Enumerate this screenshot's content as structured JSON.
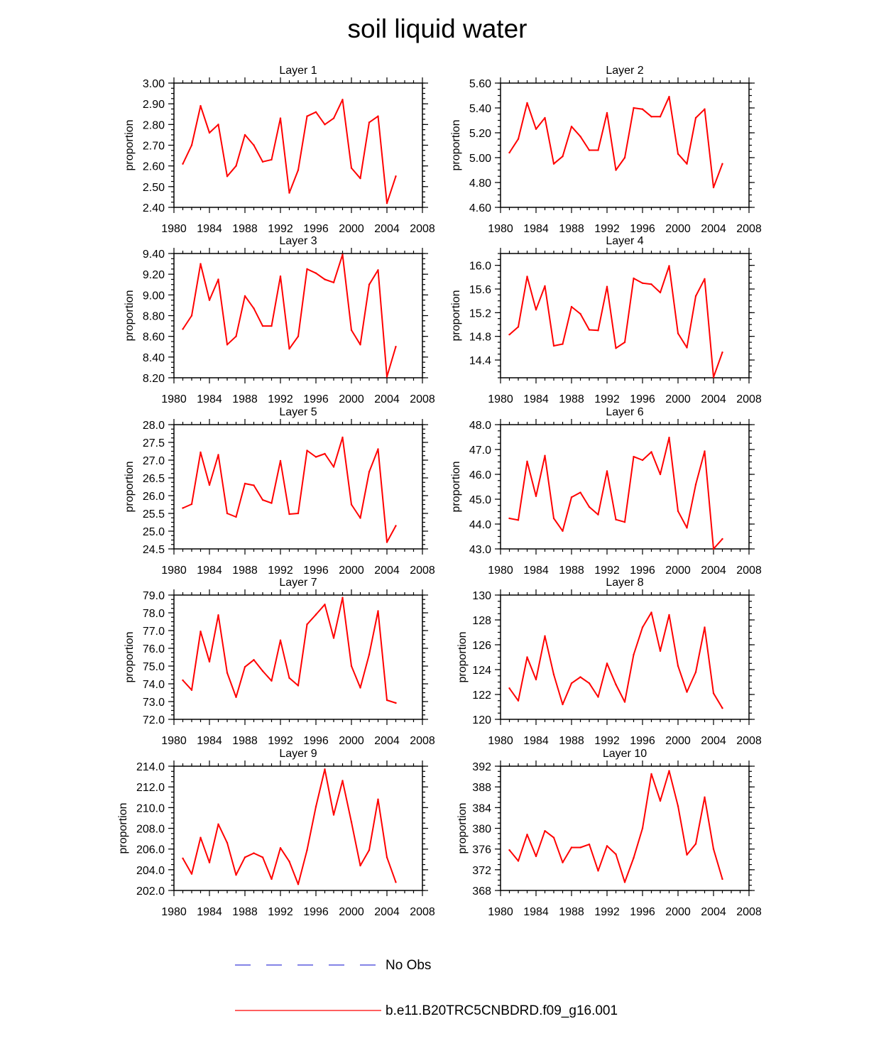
{
  "title": "soil liquid water",
  "legend": {
    "obs_label": "No Obs",
    "obs_color": "#3b3bd6",
    "model_label": "b.e11.B20TRC5CNBDRD.f09_g16.001",
    "model_color": "#ff0000"
  },
  "chart_data": [
    {
      "type": "line",
      "title": "Layer 1",
      "xlabel": "",
      "ylabel": "proportion",
      "xlim": [
        1980,
        2008
      ],
      "ylim": [
        2.4,
        3.0
      ],
      "xticks": [
        "1980",
        "1984",
        "1988",
        "1992",
        "1996",
        "2000",
        "2004",
        "2008"
      ],
      "yticks": [
        "2.40",
        "2.50",
        "2.60",
        "2.70",
        "2.80",
        "2.90",
        "3.00"
      ],
      "x": [
        1981,
        1982,
        1983,
        1984,
        1985,
        1986,
        1987,
        1988,
        1989,
        1990,
        1991,
        1992,
        1993,
        1994,
        1995,
        1996,
        1997,
        1998,
        1999,
        2000,
        2001,
        2002,
        2003,
        2004,
        2005
      ],
      "series": [
        {
          "name": "b.e11.B20TRC5CNBDRD.f09_g16.001",
          "values": [
            2.61,
            2.7,
            2.89,
            2.76,
            2.8,
            2.55,
            2.6,
            2.75,
            2.7,
            2.62,
            2.63,
            2.83,
            2.47,
            2.58,
            2.84,
            2.86,
            2.8,
            2.83,
            2.92,
            2.59,
            2.54,
            2.81,
            2.84,
            2.42,
            2.55
          ]
        }
      ]
    },
    {
      "type": "line",
      "title": "Layer 2",
      "xlabel": "",
      "ylabel": "proportion",
      "xlim": [
        1980,
        2008
      ],
      "ylim": [
        4.6,
        5.6
      ],
      "xticks": [
        "1980",
        "1984",
        "1988",
        "1992",
        "1996",
        "2000",
        "2004",
        "2008"
      ],
      "yticks": [
        "4.60",
        "4.80",
        "5.00",
        "5.20",
        "5.40",
        "5.60"
      ],
      "x": [
        1981,
        1982,
        1983,
        1984,
        1985,
        1986,
        1987,
        1988,
        1989,
        1990,
        1991,
        1992,
        1993,
        1994,
        1995,
        1996,
        1997,
        1998,
        1999,
        2000,
        2001,
        2002,
        2003,
        2004,
        2005
      ],
      "series": [
        {
          "name": "b.e11.B20TRC5CNBDRD.f09_g16.001",
          "values": [
            5.04,
            5.15,
            5.44,
            5.23,
            5.32,
            4.95,
            5.01,
            5.25,
            5.17,
            5.06,
            5.06,
            5.36,
            4.9,
            5.0,
            5.4,
            5.39,
            5.33,
            5.33,
            5.49,
            5.03,
            4.95,
            5.32,
            5.39,
            4.76,
            4.95
          ]
        }
      ]
    },
    {
      "type": "line",
      "title": "Layer 3",
      "xlabel": "",
      "ylabel": "proportion",
      "xlim": [
        1980,
        2008
      ],
      "ylim": [
        8.2,
        9.4
      ],
      "xticks": [
        "1980",
        "1984",
        "1988",
        "1992",
        "1996",
        "2000",
        "2004",
        "2008"
      ],
      "yticks": [
        "8.20",
        "8.40",
        "8.60",
        "8.80",
        "9.00",
        "9.20",
        "9.40"
      ],
      "x": [
        1981,
        1982,
        1983,
        1984,
        1985,
        1986,
        1987,
        1988,
        1989,
        1990,
        1991,
        1992,
        1993,
        1994,
        1995,
        1996,
        1997,
        1998,
        1999,
        2000,
        2001,
        2002,
        2003,
        2004,
        2005
      ],
      "series": [
        {
          "name": "b.e11.B20TRC5CNBDRD.f09_g16.001",
          "values": [
            8.67,
            8.8,
            9.3,
            8.95,
            9.15,
            8.52,
            8.6,
            8.99,
            8.87,
            8.7,
            8.7,
            9.18,
            8.48,
            8.6,
            9.25,
            9.21,
            9.15,
            9.12,
            9.39,
            8.66,
            8.52,
            9.1,
            9.24,
            8.21,
            8.5
          ]
        }
      ]
    },
    {
      "type": "line",
      "title": "Layer 4",
      "xlabel": "",
      "ylabel": "proportion",
      "xlim": [
        1980,
        2008
      ],
      "ylim": [
        14.1,
        16.2
      ],
      "xticks": [
        "1980",
        "1984",
        "1988",
        "1992",
        "1996",
        "2000",
        "2004",
        "2008"
      ],
      "yticks": [
        "14.4",
        "14.8",
        "15.2",
        "15.6",
        "16.0"
      ],
      "x": [
        1981,
        1982,
        1983,
        1984,
        1985,
        1986,
        1987,
        1988,
        1989,
        1990,
        1991,
        1992,
        1993,
        1994,
        1995,
        1996,
        1997,
        1998,
        1999,
        2000,
        2001,
        2002,
        2003,
        2004,
        2005
      ],
      "series": [
        {
          "name": "b.e11.B20TRC5CNBDRD.f09_g16.001",
          "values": [
            14.83,
            14.96,
            15.81,
            15.25,
            15.65,
            14.64,
            14.67,
            15.3,
            15.18,
            14.91,
            14.9,
            15.64,
            14.6,
            14.7,
            15.78,
            15.7,
            15.68,
            15.54,
            15.99,
            14.85,
            14.61,
            15.48,
            15.77,
            14.11,
            14.53
          ]
        }
      ]
    },
    {
      "type": "line",
      "title": "Layer 5",
      "xlabel": "",
      "ylabel": "proportion",
      "xlim": [
        1980,
        2008
      ],
      "ylim": [
        24.5,
        28.0
      ],
      "xticks": [
        "1980",
        "1984",
        "1988",
        "1992",
        "1996",
        "2000",
        "2004",
        "2008"
      ],
      "yticks": [
        "24.5",
        "25.0",
        "25.5",
        "26.0",
        "26.5",
        "27.0",
        "27.5",
        "28.0"
      ],
      "x": [
        1981,
        1982,
        1983,
        1984,
        1985,
        1986,
        1987,
        1988,
        1989,
        1990,
        1991,
        1992,
        1993,
        1994,
        1995,
        1996,
        1997,
        1998,
        1999,
        2000,
        2001,
        2002,
        2003,
        2004,
        2005
      ],
      "series": [
        {
          "name": "b.e11.B20TRC5CNBDRD.f09_g16.001",
          "values": [
            25.65,
            25.76,
            27.22,
            26.3,
            27.15,
            25.5,
            25.4,
            26.34,
            26.29,
            25.88,
            25.79,
            26.98,
            25.48,
            25.5,
            27.27,
            27.09,
            27.18,
            26.81,
            27.64,
            25.75,
            25.37,
            26.67,
            27.31,
            24.69,
            25.15
          ]
        }
      ]
    },
    {
      "type": "line",
      "title": "Layer 6",
      "xlabel": "",
      "ylabel": "proportion",
      "xlim": [
        1980,
        2008
      ],
      "ylim": [
        43.0,
        48.0
      ],
      "xticks": [
        "1980",
        "1984",
        "1988",
        "1992",
        "1996",
        "2000",
        "2004",
        "2008"
      ],
      "yticks": [
        "43.0",
        "44.0",
        "45.0",
        "46.0",
        "47.0",
        "48.0"
      ],
      "x": [
        1981,
        1982,
        1983,
        1984,
        1985,
        1986,
        1987,
        1988,
        1989,
        1990,
        1991,
        1992,
        1993,
        1994,
        1995,
        1996,
        1997,
        1998,
        1999,
        2000,
        2001,
        2002,
        2003,
        2004,
        2005
      ],
      "series": [
        {
          "name": "b.e11.B20TRC5CNBDRD.f09_g16.001",
          "values": [
            44.23,
            44.16,
            46.52,
            45.12,
            46.75,
            44.23,
            43.72,
            45.08,
            45.27,
            44.69,
            44.38,
            46.13,
            44.18,
            44.08,
            46.71,
            46.57,
            46.9,
            46.0,
            47.48,
            44.52,
            43.85,
            45.59,
            46.93,
            43.0,
            43.4
          ]
        }
      ]
    },
    {
      "type": "line",
      "title": "Layer 7",
      "xlabel": "",
      "ylabel": "proportion",
      "xlim": [
        1980,
        2008
      ],
      "ylim": [
        72.0,
        79.0
      ],
      "xticks": [
        "1980",
        "1984",
        "1988",
        "1992",
        "1996",
        "2000",
        "2004",
        "2008"
      ],
      "yticks": [
        "72.0",
        "73.0",
        "74.0",
        "75.0",
        "76.0",
        "77.0",
        "78.0",
        "79.0"
      ],
      "x": [
        1981,
        1982,
        1983,
        1984,
        1985,
        1986,
        1987,
        1988,
        1989,
        1990,
        1991,
        1992,
        1993,
        1994,
        1995,
        1996,
        1997,
        1998,
        1999,
        2000,
        2001,
        2002,
        2003,
        2004,
        2005
      ],
      "series": [
        {
          "name": "b.e11.B20TRC5CNBDRD.f09_g16.001",
          "values": [
            74.2,
            73.65,
            76.95,
            75.25,
            77.87,
            74.62,
            73.25,
            74.95,
            75.35,
            74.72,
            74.17,
            76.45,
            74.33,
            73.9,
            77.35,
            77.9,
            78.47,
            76.58,
            78.85,
            75.0,
            73.78,
            75.65,
            78.1,
            73.08,
            72.92
          ]
        }
      ]
    },
    {
      "type": "line",
      "title": "Layer 8",
      "xlabel": "",
      "ylabel": "proportion",
      "xlim": [
        1980,
        2008
      ],
      "ylim": [
        120,
        130
      ],
      "xticks": [
        "1980",
        "1984",
        "1988",
        "1992",
        "1996",
        "2000",
        "2004",
        "2008"
      ],
      "yticks": [
        "120",
        "122",
        "124",
        "126",
        "128",
        "130"
      ],
      "x": [
        1981,
        1982,
        1983,
        1984,
        1985,
        1986,
        1987,
        1988,
        1989,
        1990,
        1991,
        1992,
        1993,
        1994,
        1995,
        1996,
        1997,
        1998,
        1999,
        2000,
        2001,
        2002,
        2003,
        2004,
        2005
      ],
      "series": [
        {
          "name": "b.e11.B20TRC5CNBDRD.f09_g16.001",
          "values": [
            122.5,
            121.5,
            125.0,
            123.2,
            126.7,
            123.6,
            121.2,
            122.9,
            123.4,
            122.9,
            121.8,
            124.5,
            122.8,
            121.4,
            125.2,
            127.4,
            128.6,
            125.5,
            128.4,
            124.3,
            122.2,
            123.8,
            127.4,
            122.1,
            120.9
          ]
        }
      ]
    },
    {
      "type": "line",
      "title": "Layer 9",
      "xlabel": "",
      "ylabel": "proportion",
      "xlim": [
        1980,
        2008
      ],
      "ylim": [
        202.0,
        214.0
      ],
      "xticks": [
        "1980",
        "1984",
        "1988",
        "1992",
        "1996",
        "2000",
        "2004",
        "2008"
      ],
      "yticks": [
        "202.0",
        "204.0",
        "206.0",
        "208.0",
        "210.0",
        "212.0",
        "214.0"
      ],
      "x": [
        1981,
        1982,
        1983,
        1984,
        1985,
        1986,
        1987,
        1988,
        1989,
        1990,
        1991,
        1992,
        1993,
        1994,
        1995,
        1996,
        1997,
        1998,
        1999,
        2000,
        2001,
        2002,
        2003,
        2004,
        2005
      ],
      "series": [
        {
          "name": "b.e11.B20TRC5CNBDRD.f09_g16.001",
          "values": [
            205.1,
            203.6,
            207.1,
            204.7,
            208.4,
            206.6,
            203.5,
            205.2,
            205.6,
            205.2,
            203.1,
            206.1,
            204.8,
            202.6,
            205.9,
            210.1,
            213.7,
            209.3,
            212.6,
            208.6,
            204.4,
            205.9,
            210.8,
            205.2,
            202.8
          ]
        }
      ]
    },
    {
      "type": "line",
      "title": "Layer 10",
      "xlabel": "",
      "ylabel": "proportion",
      "xlim": [
        1980,
        2008
      ],
      "ylim": [
        368,
        392
      ],
      "xticks": [
        "1980",
        "1984",
        "1988",
        "1992",
        "1996",
        "2000",
        "2004",
        "2008"
      ],
      "yticks": [
        "368",
        "372",
        "376",
        "380",
        "384",
        "388",
        "392"
      ],
      "x": [
        1981,
        1982,
        1983,
        1984,
        1985,
        1986,
        1987,
        1988,
        1989,
        1990,
        1991,
        1992,
        1993,
        1994,
        1995,
        1996,
        1997,
        1998,
        1999,
        2000,
        2001,
        2002,
        2003,
        2004,
        2005
      ],
      "series": [
        {
          "name": "b.e11.B20TRC5CNBDRD.f09_g16.001",
          "values": [
            375.8,
            373.7,
            378.8,
            374.6,
            379.5,
            378.2,
            373.4,
            376.3,
            376.3,
            376.9,
            371.8,
            376.6,
            375.0,
            369.6,
            374.3,
            380.0,
            390.5,
            385.3,
            391.1,
            384.3,
            374.9,
            377.0,
            386.0,
            376.0,
            370.2
          ]
        }
      ]
    }
  ]
}
